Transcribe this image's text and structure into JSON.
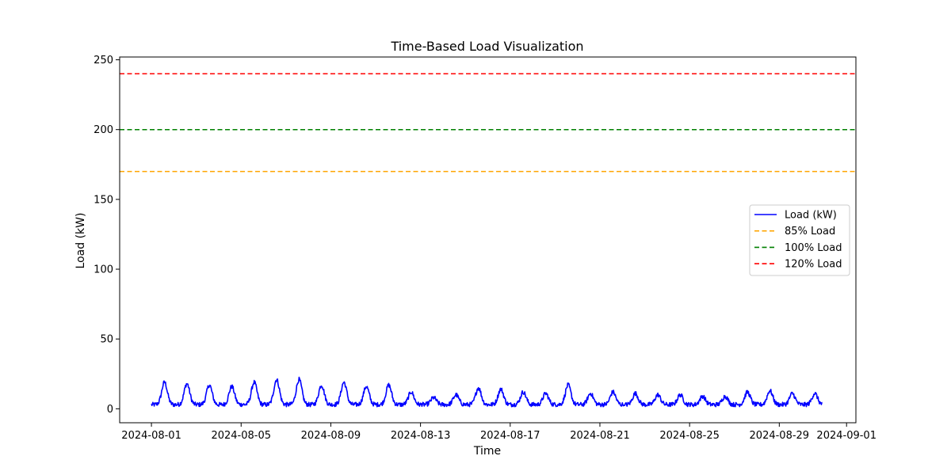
{
  "chart_data": {
    "type": "line",
    "title": "Time-Based Load Visualization",
    "xlabel": "Time",
    "ylabel": "Load (kW)",
    "xlim": [
      "2024-07-30T14:00",
      "2024-09-01T10:00"
    ],
    "ylim": [
      -10,
      252
    ],
    "x_ticks": [
      "2024-08-01",
      "2024-08-05",
      "2024-08-09",
      "2024-08-13",
      "2024-08-17",
      "2024-08-21",
      "2024-08-25",
      "2024-08-29",
      "2024-09-01"
    ],
    "y_ticks": [
      0,
      50,
      100,
      150,
      200,
      250
    ],
    "grid": false,
    "legend_position": "center-right",
    "series": [
      {
        "name": "Load (kW)",
        "color": "#0000ff",
        "style": "solid",
        "x_start": "2024-08-01",
        "x_end": "2024-08-30",
        "daily_peaks": [
          19,
          18,
          17,
          16,
          19,
          21,
          21,
          17,
          19,
          16,
          17,
          12,
          8,
          10,
          15,
          14,
          12,
          11,
          17,
          11,
          12,
          11,
          10,
          10,
          9,
          9,
          12,
          13,
          11,
          11
        ],
        "daily_min": 3
      },
      {
        "name": "85% Load",
        "color": "#ffa500",
        "style": "dashed",
        "value": 170
      },
      {
        "name": "100% Load",
        "color": "#008000",
        "style": "dashed",
        "value": 200
      },
      {
        "name": "120% Load",
        "color": "#ff0000",
        "style": "dashed",
        "value": 240
      }
    ]
  }
}
